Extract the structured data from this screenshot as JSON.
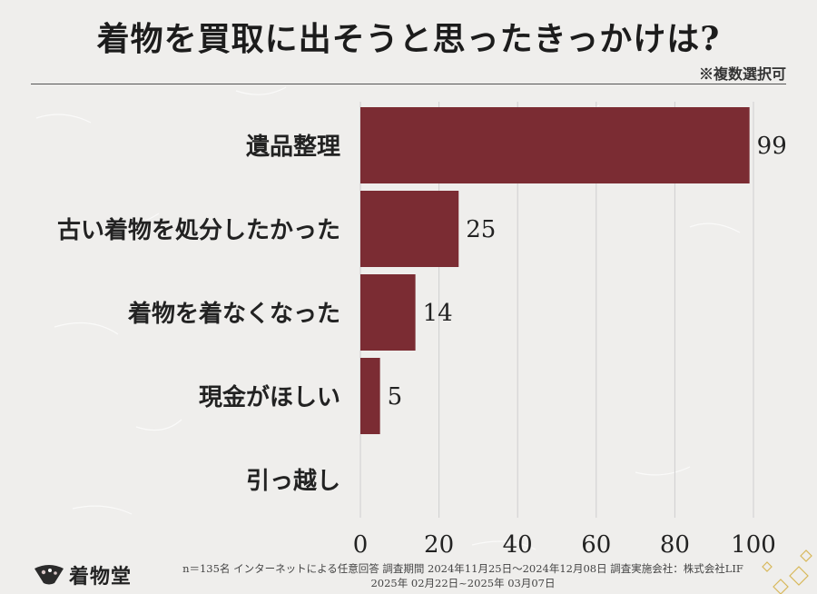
{
  "header": {
    "title": "着物を買取に出そうと思ったきっかけは?",
    "note": "※複数選択可"
  },
  "footer": {
    "brand": "着物堂",
    "line1": "n＝135名 インターネットによる任意回答 調査期間 2024年11月25日～2024年12月08日 調査実施会社：株式会社LIF",
    "line2": "2025年 02月22日~2025年 03月07日"
  },
  "colors": {
    "bar": "#7b2c33",
    "grid": "#cfcfcf",
    "text": "#222222"
  },
  "chart_data": {
    "type": "bar",
    "orientation": "horizontal",
    "categories": [
      "遺品整理",
      "古い着物を処分したかった",
      "着物を着なくなった",
      "現金がほしい",
      "引っ越し"
    ],
    "values": [
      99,
      25,
      14,
      5,
      0
    ],
    "value_labels": [
      "99",
      "25",
      "14",
      "5",
      ""
    ],
    "xlim": [
      0,
      100
    ],
    "xticks": [
      "0",
      "20",
      "40",
      "60",
      "80",
      "100"
    ],
    "grid": true,
    "legend": "none"
  }
}
